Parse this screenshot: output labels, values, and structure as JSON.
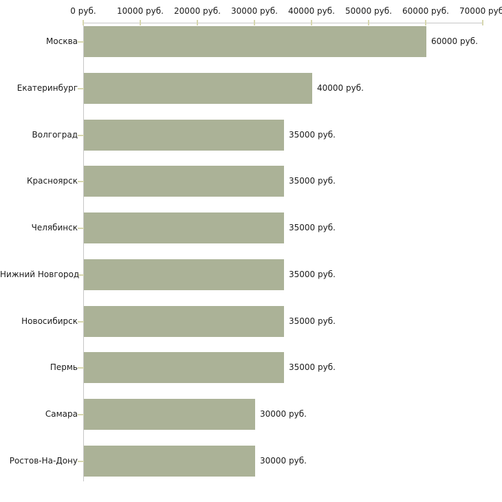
{
  "chart_data": {
    "type": "bar",
    "orientation": "horizontal",
    "title": "",
    "categories": [
      "Москва",
      "Екатеринбург",
      "Волгоград",
      "Красноярск",
      "Челябинск",
      "Нижний Новгород",
      "Новосибирск",
      "Пермь",
      "Самара",
      "Ростов-На-Дону"
    ],
    "values": [
      60000,
      40000,
      35000,
      35000,
      35000,
      35000,
      35000,
      35000,
      30000,
      30000
    ],
    "value_labels": [
      "60000 руб.",
      "40000 руб.",
      "35000 руб.",
      "35000 руб.",
      "35000 руб.",
      "35000 руб.",
      "35000 руб.",
      "35000 руб.",
      "30000 руб.",
      "30000 руб."
    ],
    "x_axis": {
      "position": "top",
      "range": [
        0,
        70000
      ],
      "tick_values": [
        0,
        10000,
        20000,
        30000,
        40000,
        50000,
        60000,
        70000
      ],
      "tick_labels": [
        "0 руб.",
        "10000 руб.",
        "20000 руб.",
        "30000 руб.",
        "40000 руб.",
        "50000 руб.",
        "60000 руб.",
        "70000 руб."
      ]
    },
    "grid": false,
    "legend": false,
    "colors": {
      "bar": "#abb297",
      "axis_line": "#c6c6c6",
      "tick_mark": "#d7d7af",
      "text": "#1a1a1a",
      "background": "#ffffff"
    }
  }
}
